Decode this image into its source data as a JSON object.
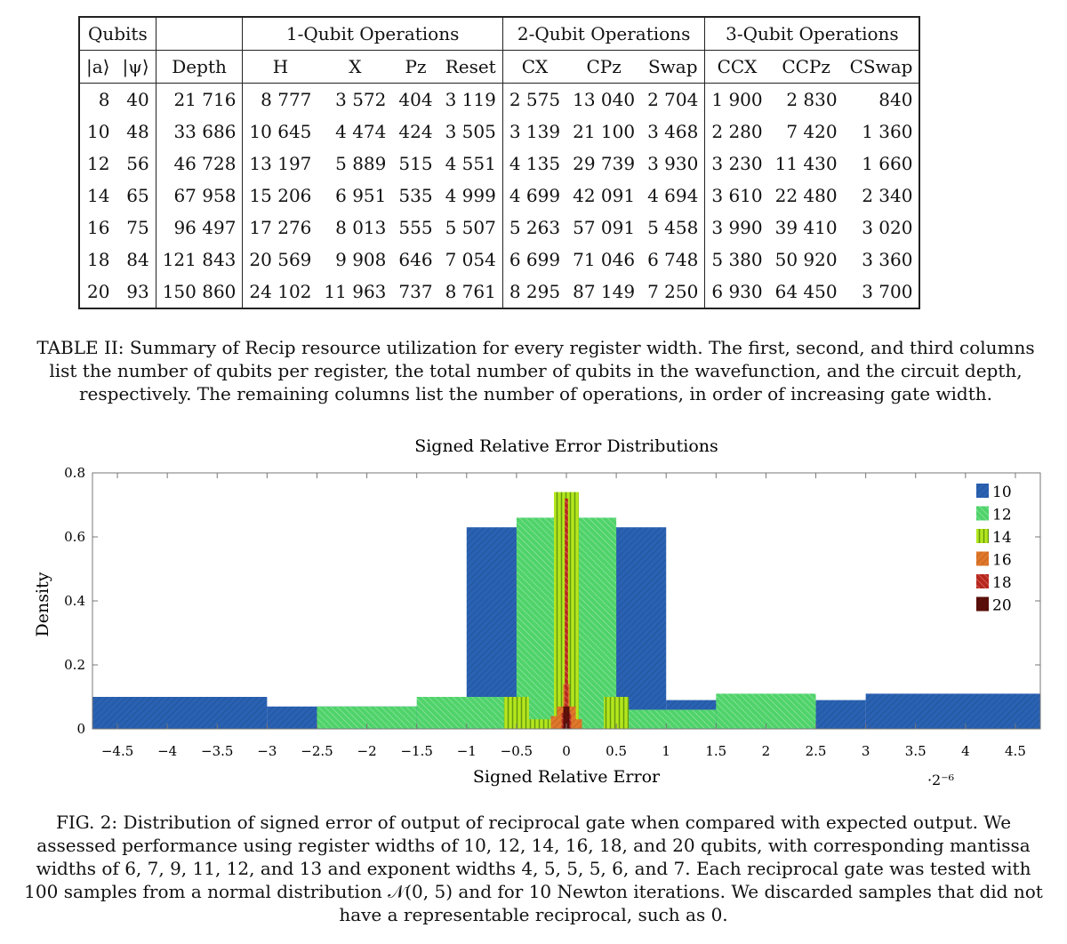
{
  "table": {
    "group_headers": [
      "Qubits",
      "1-Qubit Operations",
      "2-Qubit Operations",
      "3-Qubit Operations"
    ],
    "col_headers": [
      "|a⟩",
      "|ψ⟩",
      "Depth",
      "H",
      "X",
      "Pz",
      "Reset",
      "CX",
      "CPz",
      "Swap",
      "CCX",
      "CCPz",
      "CSwap"
    ],
    "rows": [
      [
        "8",
        "40",
        "21 716",
        "8 777",
        "3 572",
        "404",
        "3 119",
        "2 575",
        "13 040",
        "2 704",
        "1 900",
        "2 830",
        "840"
      ],
      [
        "10",
        "48",
        "33 686",
        "10 645",
        "4 474",
        "424",
        "3 505",
        "3 139",
        "21 100",
        "3 468",
        "2 280",
        "7 420",
        "1 360"
      ],
      [
        "12",
        "56",
        "46 728",
        "13 197",
        "5 889",
        "515",
        "4 551",
        "4 135",
        "29 739",
        "3 930",
        "3 230",
        "11 430",
        "1 660"
      ],
      [
        "14",
        "65",
        "67 958",
        "15 206",
        "6 951",
        "535",
        "4 999",
        "4 699",
        "42 091",
        "4 694",
        "3 610",
        "22 480",
        "2 340"
      ],
      [
        "16",
        "75",
        "96 497",
        "17 276",
        "8 013",
        "555",
        "5 507",
        "5 263",
        "57 091",
        "5 458",
        "3 990",
        "39 410",
        "3 020"
      ],
      [
        "18",
        "84",
        "121 843",
        "20 569",
        "9 908",
        "646",
        "7 054",
        "6 699",
        "71 046",
        "6 748",
        "5 380",
        "50 920",
        "3 360"
      ],
      [
        "20",
        "93",
        "150 860",
        "24 102",
        "11 963",
        "737",
        "8 761",
        "8 295",
        "87 149",
        "7 250",
        "6 930",
        "64 450",
        "3 700"
      ]
    ],
    "caption": "TABLE II: Summary of Recip resource utilization for every register width. The first, second, and third columns list the number of qubits per register, the total number of qubits in the wavefunction, and the circuit depth, respectively. The remaining columns list the number of operations, in order of increasing gate width."
  },
  "chart_data": {
    "type": "bar",
    "title": "Signed Relative Error Distributions",
    "xlabel": "Signed Relative Error",
    "ylabel": "Density",
    "x_scale_note": "·2⁻⁶",
    "xlim": [
      -4.75,
      4.75
    ],
    "ylim": [
      0,
      0.8
    ],
    "xticks": [
      -4.5,
      -4,
      -3.5,
      -3,
      -2.5,
      -2,
      -1.5,
      -1,
      -0.5,
      0,
      0.5,
      1,
      1.5,
      2,
      2.5,
      3,
      3.5,
      4,
      4.5
    ],
    "yticks": [
      0,
      0.2,
      0.4,
      0.6,
      0.8
    ],
    "legend_position": "top-right",
    "series": [
      {
        "name": "10",
        "color": "#2a62b3",
        "bins": [
          [
            -4.75,
            -3,
            0.1
          ],
          [
            -3,
            -2.5,
            0.07
          ],
          [
            -2.5,
            -1,
            0.07
          ],
          [
            -1,
            0,
            0.63
          ],
          [
            0,
            1,
            0.63
          ],
          [
            1,
            2.5,
            0.09
          ],
          [
            2.5,
            3,
            0.09
          ],
          [
            3,
            4.75,
            0.11
          ]
        ]
      },
      {
        "name": "12",
        "color": "#4fd36a",
        "bins": [
          [
            -2.5,
            -1.5,
            0.07
          ],
          [
            -1.5,
            -0.5,
            0.1
          ],
          [
            -0.5,
            0,
            0.66
          ],
          [
            0,
            0.5,
            0.66
          ],
          [
            0.5,
            1.5,
            0.06
          ],
          [
            1.5,
            2.5,
            0.11
          ]
        ]
      },
      {
        "name": "14",
        "color": "#b5e61d",
        "bins": [
          [
            -0.625,
            -0.375,
            0.1
          ],
          [
            -0.375,
            -0.125,
            0.03
          ],
          [
            -0.125,
            0.125,
            0.74
          ],
          [
            0.375,
            0.625,
            0.1
          ]
        ]
      },
      {
        "name": "16",
        "color": "#e0772a",
        "bins": [
          [
            -0.156,
            -0.094,
            0.04
          ],
          [
            -0.094,
            -0.031,
            0.07
          ],
          [
            -0.031,
            0.031,
            0.14
          ],
          [
            0.031,
            0.094,
            0.07
          ],
          [
            0.094,
            0.156,
            0.03
          ]
        ]
      },
      {
        "name": "18",
        "color": "#b8261c",
        "bins": [
          [
            -0.047,
            -0.016,
            0.05
          ],
          [
            -0.016,
            0.016,
            0.72
          ],
          [
            0.016,
            0.047,
            0.05
          ]
        ]
      },
      {
        "name": "20",
        "color": "#5c0f0a",
        "bins": [
          [
            -0.031,
            -0.008,
            0.07
          ],
          [
            -0.008,
            0.008,
            0.07
          ],
          [
            0.008,
            0.031,
            0.07
          ]
        ]
      }
    ]
  },
  "figure": {
    "caption": "FIG. 2: Distribution of signed error of output of reciprocal gate when compared with expected output. We assessed performance using register widths of 10, 12, 14, 16, 18, and 20 qubits, with corresponding mantissa widths of 6, 7, 9, 11, 12, and 13 and exponent widths 4, 5, 5, 5, 6, and 7. Each reciprocal gate was tested with 100 samples from a normal distribution 𝒩(0, 5) and for 10 Newton iterations. We discarded samples that did not have a representable reciprocal, such as 0."
  }
}
